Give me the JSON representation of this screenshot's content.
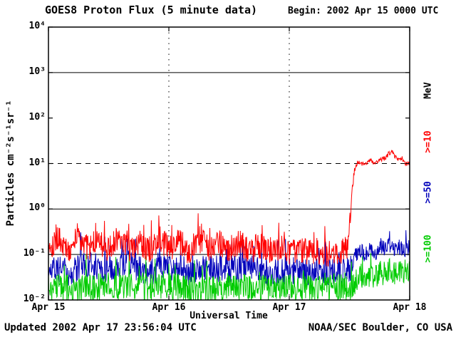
{
  "header": {
    "title": "GOES8 Proton Flux (5 minute data)",
    "begin_label": "Begin: 2002 Apr 15 0000 UTC"
  },
  "footer": {
    "updated": "Updated 2002 Apr 17 23:56:04 UTC",
    "credit": "NOAA/SEC Boulder, CO USA"
  },
  "chart_data": {
    "type": "line",
    "title": "GOES8 Proton Flux (5 minute data)",
    "xlabel": "Universal Time",
    "ylabel": "Particles cm⁻²s⁻¹sr⁻¹",
    "right_axis_label": "MeV",
    "x_unit": "hours since 2002 Apr 15 0000 UTC",
    "xlim": [
      0,
      72
    ],
    "ylim_log10": [
      -2,
      4
    ],
    "yscale": "log",
    "floor": 0.01,
    "sample_minutes": 5,
    "legend_position": "right-vertical",
    "xticks": [
      {
        "t": 0,
        "label": "Apr 15"
      },
      {
        "t": 24,
        "label": "Apr 16"
      },
      {
        "t": 48,
        "label": "Apr 17"
      },
      {
        "t": 72,
        "label": "Apr 18"
      }
    ],
    "yticks": [
      {
        "exp": 4,
        "label": "10⁴"
      },
      {
        "exp": 3,
        "label": "10³"
      },
      {
        "exp": 2,
        "label": "10²"
      },
      {
        "exp": 1,
        "label": "10¹"
      },
      {
        "exp": 0,
        "label": "10⁰"
      },
      {
        "exp": -1,
        "label": "10⁻¹"
      },
      {
        "exp": -2,
        "label": "10⁻²"
      }
    ],
    "grid": {
      "solid_decades": [
        3,
        0,
        -1
      ],
      "dashed_decades": [
        1
      ],
      "vertical_dotted_t": [
        24,
        48
      ]
    },
    "draw_order": [
      1,
      2,
      0
    ],
    "sampling_note": "Noisy 5-minute flux reconstructed from anchor points (t hours, particles cm-2 s-1 sr-1) with multiplicative log-normal noise envelope read from the plot; proton event onset ~Apr 17 12:00 UTC rising to ~10-18 for >=10 MeV.",
    "series": [
      {
        "name": ">=10 MeV",
        "label": ">=10",
        "color": "#ff0000",
        "seed": 101,
        "spike_prob": 0.04,
        "spike_decades": 0.35,
        "noise_profile": [
          [
            0,
            0.3
          ],
          [
            59.5,
            0.3
          ],
          [
            60.5,
            0.12
          ],
          [
            61.5,
            0.05
          ],
          [
            72,
            0.05
          ]
        ],
        "anchors": [
          [
            0,
            0.15
          ],
          [
            2,
            0.22
          ],
          [
            4,
            0.12
          ],
          [
            6,
            0.28
          ],
          [
            8,
            0.14
          ],
          [
            10,
            0.2
          ],
          [
            12,
            0.12
          ],
          [
            14,
            0.25
          ],
          [
            16,
            0.13
          ],
          [
            18,
            0.2
          ],
          [
            20,
            0.12
          ],
          [
            22,
            0.24
          ],
          [
            24,
            0.14
          ],
          [
            26,
            0.19
          ],
          [
            28,
            0.11
          ],
          [
            30,
            0.22
          ],
          [
            32,
            0.13
          ],
          [
            34,
            0.18
          ],
          [
            36,
            0.12
          ],
          [
            38,
            0.2
          ],
          [
            40,
            0.11
          ],
          [
            42,
            0.16
          ],
          [
            44,
            0.12
          ],
          [
            46,
            0.14
          ],
          [
            48,
            0.12
          ],
          [
            50,
            0.13
          ],
          [
            52,
            0.11
          ],
          [
            54,
            0.12
          ],
          [
            56,
            0.1
          ],
          [
            58,
            0.11
          ],
          [
            59.5,
            0.12
          ],
          [
            60,
            0.4
          ],
          [
            60.5,
            2.5
          ],
          [
            61,
            7
          ],
          [
            61.5,
            10
          ],
          [
            62,
            11
          ],
          [
            63,
            9
          ],
          [
            64,
            12
          ],
          [
            65,
            10
          ],
          [
            66,
            12
          ],
          [
            67,
            13
          ],
          [
            68,
            17
          ],
          [
            68.5,
            18
          ],
          [
            69,
            14
          ],
          [
            70,
            12
          ],
          [
            70.5,
            13
          ],
          [
            71,
            10
          ],
          [
            72,
            10
          ]
        ]
      },
      {
        "name": ">=50 MeV",
        "label": ">=50",
        "color": "#0000bb",
        "seed": 202,
        "spike_prob": 0.04,
        "spike_decades": 0.5,
        "noise_profile": [
          [
            0,
            0.3
          ],
          [
            60,
            0.3
          ],
          [
            61,
            0.2
          ],
          [
            72,
            0.18
          ]
        ],
        "anchors": [
          [
            0,
            0.055
          ],
          [
            4,
            0.04
          ],
          [
            8,
            0.06
          ],
          [
            12,
            0.045
          ],
          [
            16,
            0.06
          ],
          [
            20,
            0.04
          ],
          [
            24,
            0.055
          ],
          [
            28,
            0.04
          ],
          [
            32,
            0.05
          ],
          [
            36,
            0.045
          ],
          [
            40,
            0.05
          ],
          [
            44,
            0.04
          ],
          [
            48,
            0.045
          ],
          [
            52,
            0.04
          ],
          [
            56,
            0.042
          ],
          [
            60,
            0.045
          ],
          [
            60.5,
            0.06
          ],
          [
            61,
            0.09
          ],
          [
            62,
            0.12
          ],
          [
            63,
            0.1
          ],
          [
            64,
            0.13
          ],
          [
            65,
            0.11
          ],
          [
            66,
            0.14
          ],
          [
            67,
            0.13
          ],
          [
            68,
            0.17
          ],
          [
            69,
            0.14
          ],
          [
            70,
            0.15
          ],
          [
            71,
            0.13
          ],
          [
            72,
            0.14
          ]
        ]
      },
      {
        "name": ">=100 MeV",
        "label": ">=100",
        "color": "#00cc00",
        "seed": 303,
        "spike_prob": 0.05,
        "spike_decades": 0.45,
        "noise_profile": [
          [
            0,
            0.3
          ],
          [
            60,
            0.3
          ],
          [
            61,
            0.28
          ],
          [
            72,
            0.25
          ]
        ],
        "anchors": [
          [
            0,
            0.02
          ],
          [
            6,
            0.017
          ],
          [
            12,
            0.021
          ],
          [
            18,
            0.018
          ],
          [
            24,
            0.02
          ],
          [
            30,
            0.017
          ],
          [
            36,
            0.02
          ],
          [
            42,
            0.018
          ],
          [
            48,
            0.019
          ],
          [
            54,
            0.018
          ],
          [
            60,
            0.019
          ],
          [
            61,
            0.025
          ],
          [
            62,
            0.03
          ],
          [
            63,
            0.028
          ],
          [
            64,
            0.035
          ],
          [
            65,
            0.032
          ],
          [
            66,
            0.04
          ],
          [
            67,
            0.038
          ],
          [
            68,
            0.045
          ],
          [
            69,
            0.04
          ],
          [
            70,
            0.042
          ],
          [
            71,
            0.038
          ],
          [
            72,
            0.04
          ]
        ]
      }
    ]
  }
}
